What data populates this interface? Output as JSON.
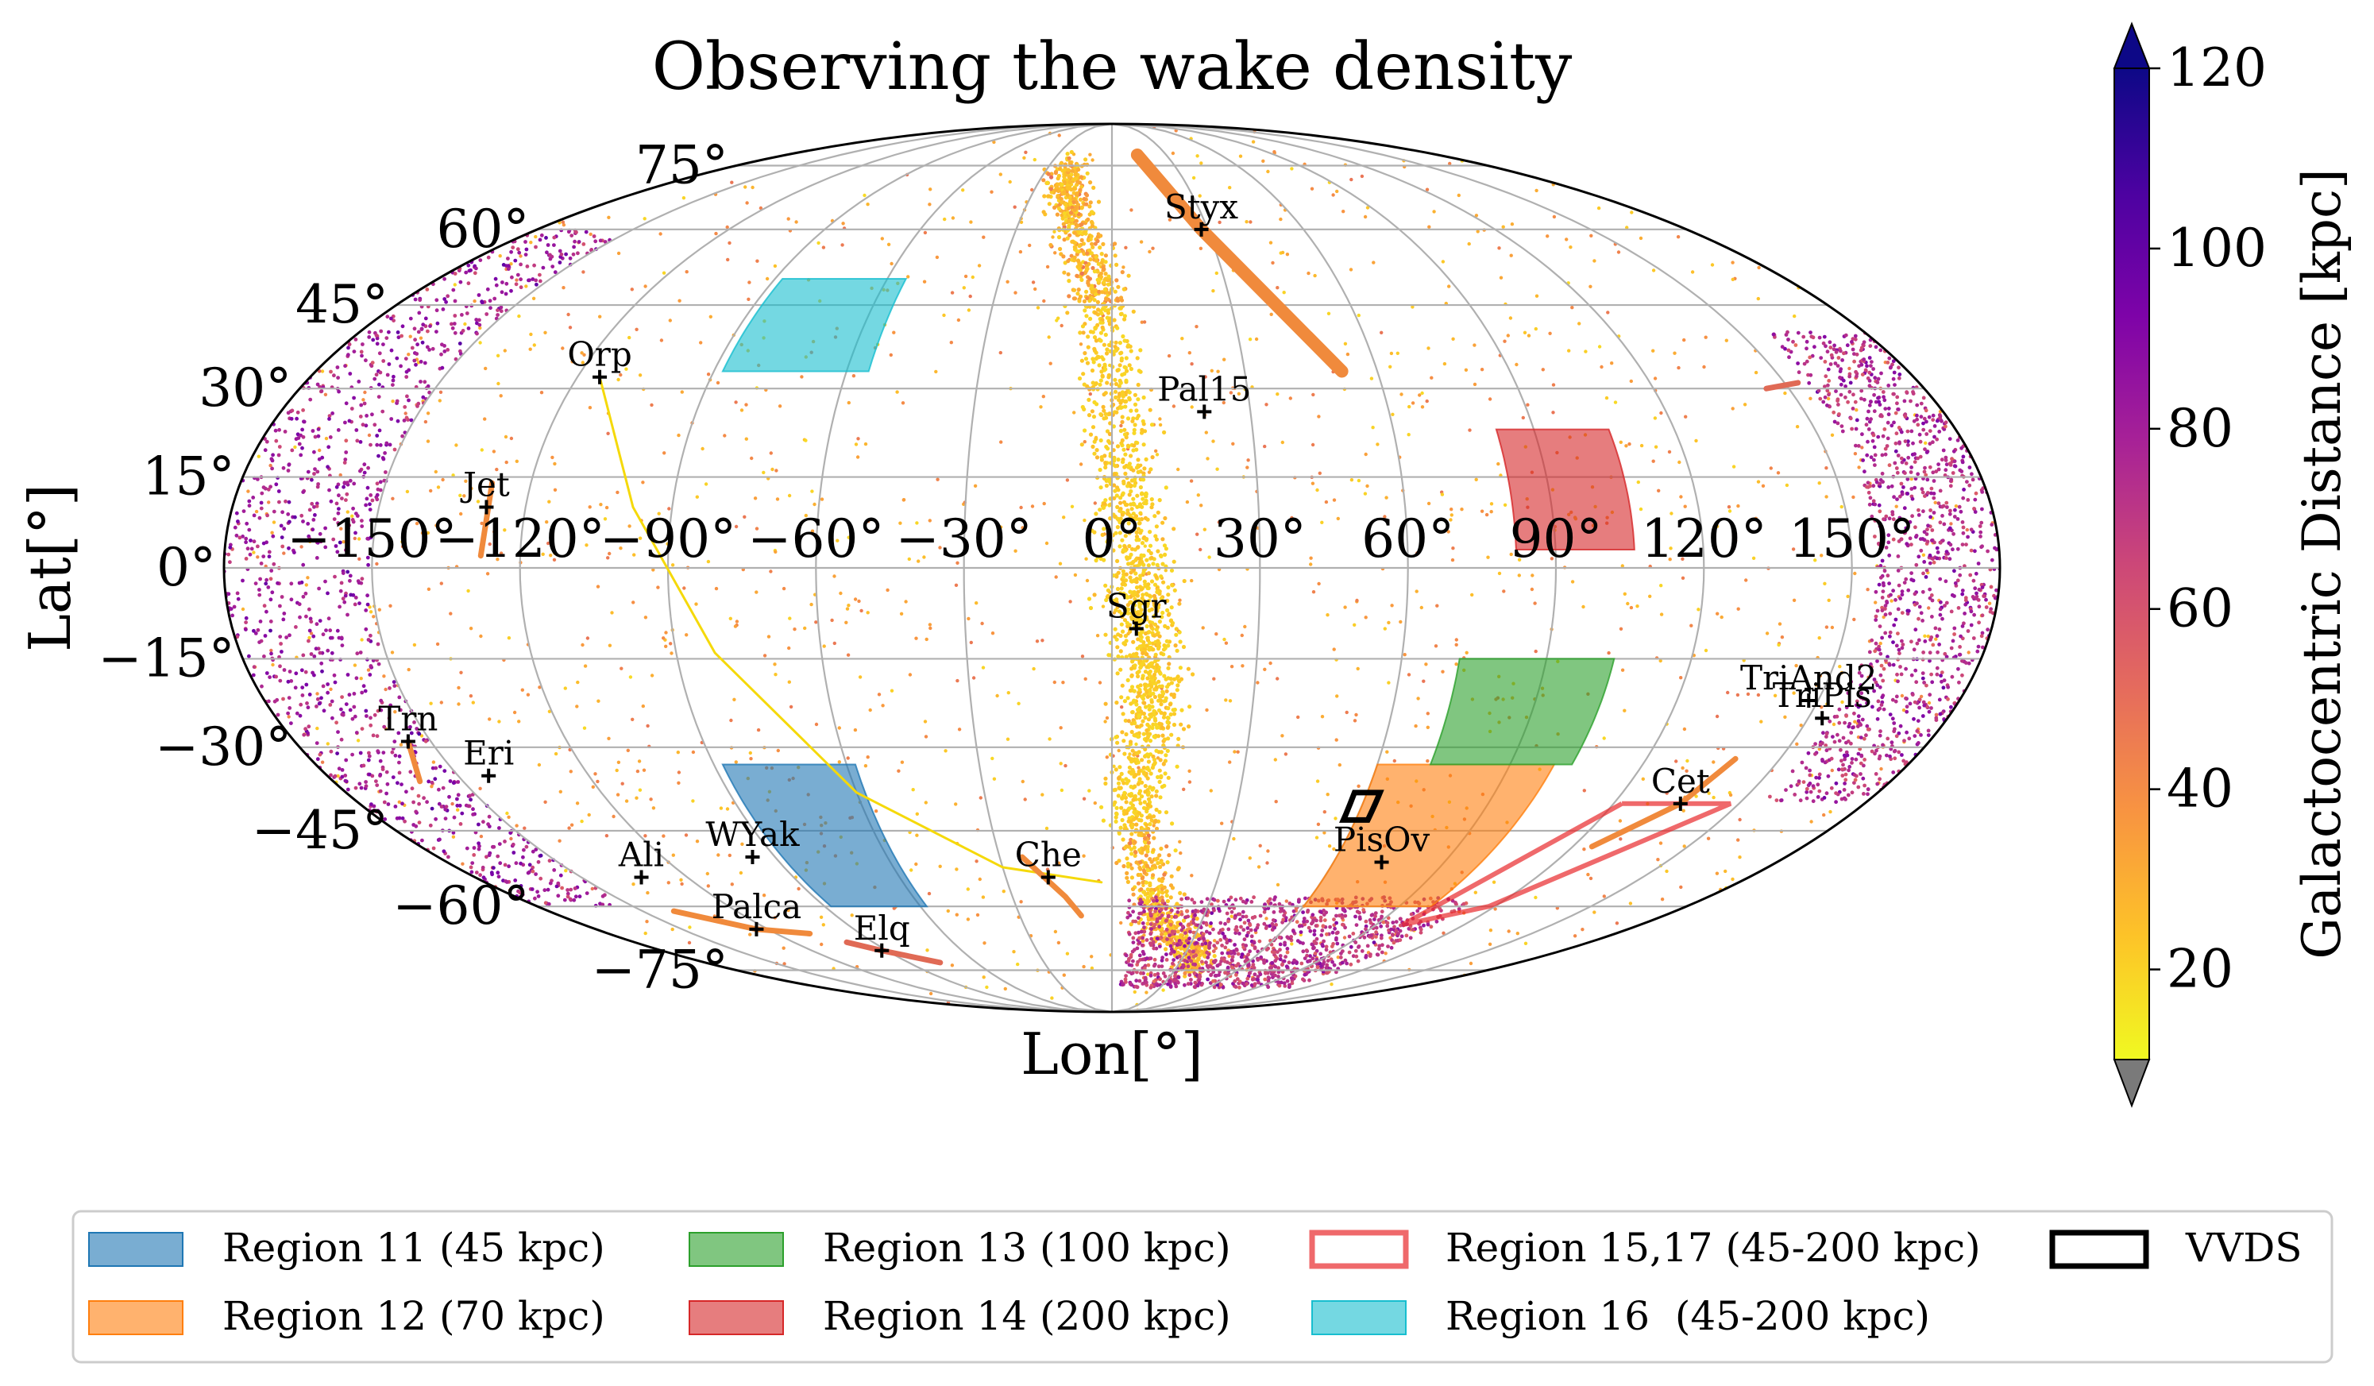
{
  "chart_data": {
    "type": "scatter",
    "projection": "mollweide",
    "title": "Observing the wake density",
    "xlabel": "Lon[°]",
    "ylabel": "Lat[°]",
    "grid": true,
    "lon_ticks": [
      {
        "value": -150,
        "label": "−150°"
      },
      {
        "value": -120,
        "label": "−120°"
      },
      {
        "value": -90,
        "label": "−90°"
      },
      {
        "value": -60,
        "label": "−60°"
      },
      {
        "value": -30,
        "label": "−30°"
      },
      {
        "value": 0,
        "label": "0°"
      },
      {
        "value": 30,
        "label": "30°"
      },
      {
        "value": 60,
        "label": "60°"
      },
      {
        "value": 90,
        "label": "90°"
      },
      {
        "value": 120,
        "label": "120°"
      },
      {
        "value": 150,
        "label": "150°"
      }
    ],
    "lat_ticks": [
      {
        "value": 75,
        "label": "75°"
      },
      {
        "value": 60,
        "label": "60°"
      },
      {
        "value": 45,
        "label": "45°"
      },
      {
        "value": 30,
        "label": "30°"
      },
      {
        "value": 15,
        "label": "15°"
      },
      {
        "value": 0,
        "label": "0°"
      },
      {
        "value": -15,
        "label": "−15°"
      },
      {
        "value": -30,
        "label": "−30°"
      },
      {
        "value": -45,
        "label": "−45°"
      },
      {
        "value": -60,
        "label": "−60°"
      },
      {
        "value": -75,
        "label": "−75°"
      }
    ],
    "colorbar": {
      "label": "Galactocentric Distance [kpc]",
      "min": 10,
      "max": 120,
      "extend": "both",
      "colormap": "plasma_r",
      "ticks": [
        20,
        40,
        60,
        80,
        100,
        120
      ],
      "under_color": "#7a7a7a",
      "over_color": "#0d0887",
      "stops": [
        "#f0f921",
        "#fdc328",
        "#f89441",
        "#e56b5d",
        "#cc4778",
        "#a72197",
        "#7e03a8",
        "#4c02a1",
        "#0d0887"
      ]
    },
    "density_components": [
      {
        "name": "sgr-stream",
        "path_lon_lat": [
          [
            -22,
            75
          ],
          [
            -12,
            62
          ],
          [
            -2,
            45
          ],
          [
            2,
            20
          ],
          [
            5,
            0
          ],
          [
            7,
            -12
          ],
          [
            9,
            -25
          ],
          [
            5,
            -42
          ],
          [
            14,
            -62
          ],
          [
            40,
            -74
          ]
        ],
        "distance_kpc": 18
      },
      {
        "name": "outer-halo-west-limb",
        "lon_range": [
          -180,
          -150
        ],
        "lat_range": [
          -60,
          60
        ],
        "distance_kpc": 80
      },
      {
        "name": "outer-halo-east-limb",
        "lon_range": [
          155,
          180
        ],
        "lat_range": [
          -40,
          40
        ],
        "distance_kpc": 75
      },
      {
        "name": "southern-wake",
        "lon_range": [
          5,
          110
        ],
        "lat_range": [
          -80,
          -58
        ],
        "distance_kpc": 70
      }
    ],
    "regions": [
      {
        "name": "Region 11 (45 kpc)",
        "color": "#1f77b4",
        "alpha": 0.6,
        "filled": true,
        "lon_range": [
          -88,
          -58
        ],
        "lat_range": [
          -60,
          -33
        ]
      },
      {
        "name": "Region 12 (70 kpc)",
        "color": "#ff7f0e",
        "alpha": 0.6,
        "filled": true,
        "lon_range": [
          60,
          100
        ],
        "lat_range": [
          -60,
          -33
        ]
      },
      {
        "name": "Region 13 (100 kpc)",
        "color": "#2ca02c",
        "alpha": 0.6,
        "filled": true,
        "lon_range": [
          72,
          104
        ],
        "lat_range": [
          -33,
          -15
        ]
      },
      {
        "name": "Region 14 (200 kpc)",
        "color": "#d62728",
        "alpha": 0.6,
        "filled": true,
        "lon_range": [
          82,
          106
        ],
        "lat_range": [
          3,
          23
        ]
      },
      {
        "name": "Region 15,17 (45-200 kpc)",
        "color": "#e8292c",
        "alpha": 0.7,
        "filled": false,
        "outline_lon_lat": [
          [
            122,
            -40
          ],
          [
            148,
            -40
          ],
          [
            118,
            -60
          ],
          [
            99,
            -64
          ],
          [
            122,
            -40
          ]
        ]
      },
      {
        "name": "Region 16  (45-200 kpc)",
        "color": "#17becf",
        "alpha": 0.6,
        "filled": true,
        "lon_range": [
          -88,
          -55
        ],
        "lat_range": [
          33,
          50
        ]
      },
      {
        "name": "VVDS",
        "color": "#000000",
        "alpha": 1,
        "filled": false,
        "lon_range": [
          57,
          63
        ],
        "lat_range": [
          -43,
          -38
        ]
      }
    ],
    "objects": [
      {
        "label": "Styx",
        "lon": 28,
        "lat": 60
      },
      {
        "label": "Orp",
        "lon": -115,
        "lat": 32
      },
      {
        "label": "Pal15",
        "lon": 20,
        "lat": 26
      },
      {
        "label": "Jet",
        "lon": -128,
        "lat": 10
      },
      {
        "label": "Sgr",
        "lon": 5,
        "lat": -10
      },
      {
        "label": "TriAnd2",
        "lon": 148,
        "lat": -22
      },
      {
        "label": "TriPis",
        "lon": 153,
        "lat": -25
      },
      {
        "label": "Trn",
        "lon": -155,
        "lat": -29
      },
      {
        "label": "Eri",
        "lon": -143,
        "lat": -35
      },
      {
        "label": "Cet",
        "lon": 136,
        "lat": -40
      },
      {
        "label": "WYak",
        "lon": -96,
        "lat": -50
      },
      {
        "label": "PisOv",
        "lon": 73,
        "lat": -51
      },
      {
        "label": "Ali",
        "lon": -133,
        "lat": -54
      },
      {
        "label": "Che",
        "lon": -18,
        "lat": -54
      },
      {
        "label": "Palca",
        "lon": -124,
        "lat": -65
      },
      {
        "label": "Elq",
        "lon": -92,
        "lat": -70
      }
    ],
    "streams": [
      {
        "name": "styx-stream",
        "color": "#f08a3c",
        "points": [
          [
            14,
            78
          ],
          [
            28,
            60
          ],
          [
            52,
            33
          ]
        ]
      },
      {
        "name": "orphan-stream",
        "color": "#f5d90a",
        "points": [
          [
            -115,
            32
          ],
          [
            -98,
            10
          ],
          [
            -82,
            -14
          ],
          [
            -60,
            -38
          ],
          [
            -30,
            -52
          ],
          [
            -3,
            -55
          ]
        ]
      },
      {
        "name": "che-stream",
        "color": "#f08a3c",
        "points": [
          [
            -24,
            -50
          ],
          [
            -14,
            -58
          ],
          [
            -10,
            -62
          ]
        ]
      },
      {
        "name": "jet-stream",
        "color": "#f08a3c",
        "points": [
          [
            -128,
            14
          ],
          [
            -128,
            2
          ]
        ]
      },
      {
        "name": "trn-stream",
        "color": "#f08a3c",
        "points": [
          [
            -155,
            -29
          ],
          [
            -160,
            -36
          ]
        ]
      },
      {
        "name": "palca-stream",
        "color": "#f08a3c",
        "points": [
          [
            -140,
            -61
          ],
          [
            -124,
            -65
          ],
          [
            -108,
            -66
          ]
        ]
      },
      {
        "name": "elq-stream",
        "color": "#e06a55",
        "points": [
          [
            -100,
            -68
          ],
          [
            -92,
            -70
          ],
          [
            -76,
            -73
          ]
        ]
      },
      {
        "name": "east-edge-streak",
        "color": "#e06a55",
        "points": [
          [
            145,
            30
          ],
          [
            153,
            31
          ]
        ]
      },
      {
        "name": "cet-stream",
        "color": "#f08a3c",
        "points": [
          [
            140,
            -32
          ],
          [
            136,
            -40
          ],
          [
            125,
            -48
          ]
        ]
      }
    ],
    "legend": {
      "placement": "bottom",
      "columns": 4,
      "entries": [
        {
          "label": "Region 11 (45 kpc)",
          "color": "#1f77b4",
          "style": "filled"
        },
        {
          "label": "Region 12 (70 kpc)",
          "color": "#ff7f0e",
          "style": "filled"
        },
        {
          "label": "Region 13 (100 kpc)",
          "color": "#2ca02c",
          "style": "filled"
        },
        {
          "label": "Region 14 (200 kpc)",
          "color": "#d62728",
          "style": "filled"
        },
        {
          "label": "Region 15,17 (45-200 kpc)",
          "color": "#e8292c",
          "style": "outline"
        },
        {
          "label": "Region 16  (45-200 kpc)",
          "color": "#17becf",
          "style": "filled"
        },
        {
          "label": "VVDS",
          "color": "#000000",
          "style": "outline"
        }
      ]
    }
  }
}
